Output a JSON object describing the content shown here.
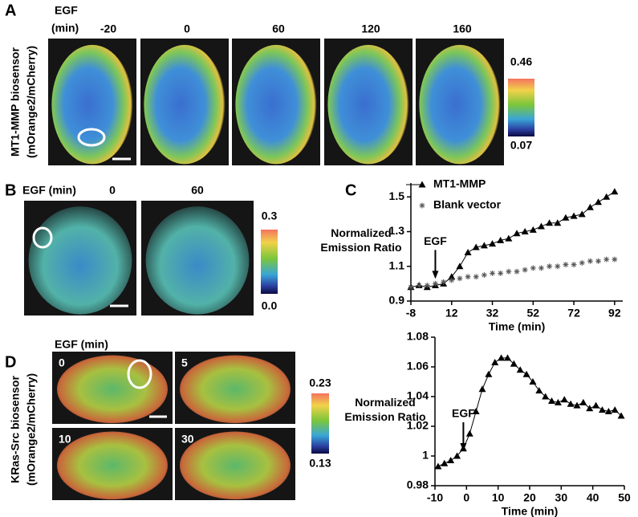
{
  "figure": {
    "panel_labels": [
      "A",
      "B",
      "C",
      "D"
    ],
    "a": {
      "egf_label": [
        "EGF",
        "(min)"
      ],
      "times": [
        "-20",
        "0",
        "60",
        "120",
        "160"
      ],
      "ylabel": [
        "MT1-MMP biosensor",
        "(mOrange2/mCherry)"
      ],
      "scale": [
        "0.46",
        "0.07"
      ]
    },
    "b": {
      "egf_label": "EGF (min)",
      "times": [
        "0",
        "60"
      ],
      "scale": [
        "0.3",
        "0.0"
      ]
    },
    "d": {
      "egf_label": "EGF (min)",
      "times": [
        "0",
        "5",
        "10",
        "30"
      ],
      "ylabel": [
        "KRas-Src biosensor",
        "(mOrange2/mCherry)"
      ],
      "scale": [
        "0.23",
        "0.13"
      ]
    }
  },
  "chart_data": [
    {
      "type": "line",
      "xlabel": "Time (min)",
      "ylabel": [
        "Normalized",
        "Emission Ratio"
      ],
      "xlim": [
        -8,
        96
      ],
      "xticks": [
        -8,
        12,
        32,
        52,
        72,
        92
      ],
      "ylim": [
        0.9,
        1.58
      ],
      "yticks": [
        0.9,
        1.1,
        1.3,
        1.5
      ],
      "annotation": {
        "text": "EGF",
        "x": 4,
        "y": 1.0
      },
      "x": [
        -8,
        -4,
        0,
        4,
        8,
        12,
        16,
        20,
        24,
        28,
        32,
        36,
        40,
        44,
        48,
        52,
        56,
        60,
        64,
        68,
        72,
        76,
        80,
        84,
        88,
        92
      ],
      "series": [
        {
          "name": "MT1-MMP",
          "color": "#000000",
          "marker": "triangle",
          "line": true,
          "values": [
            0.98,
            0.99,
            0.98,
            0.99,
            1.0,
            1.04,
            1.1,
            1.18,
            1.21,
            1.22,
            1.23,
            1.25,
            1.26,
            1.29,
            1.3,
            1.31,
            1.33,
            1.35,
            1.35,
            1.38,
            1.39,
            1.4,
            1.44,
            1.47,
            1.5,
            1.53
          ]
        },
        {
          "name": "Blank vector",
          "color": "#555555",
          "marker": "asterisk",
          "line": false,
          "values": [
            0.98,
            0.99,
            0.99,
            1.0,
            1.01,
            1.02,
            1.03,
            1.04,
            1.04,
            1.05,
            1.06,
            1.06,
            1.07,
            1.07,
            1.08,
            1.09,
            1.09,
            1.1,
            1.1,
            1.11,
            1.11,
            1.12,
            1.13,
            1.13,
            1.14,
            1.14
          ]
        }
      ]
    },
    {
      "type": "line",
      "xlabel": "Time (min)",
      "ylabel": [
        "Normalized",
        "Emission Ratio"
      ],
      "xlim": [
        -10,
        50
      ],
      "xticks": [
        -10,
        0,
        10,
        20,
        30,
        40,
        50
      ],
      "ylim": [
        0.98,
        1.08
      ],
      "yticks": [
        0.98,
        1,
        1.02,
        1.04,
        1.06,
        1.08
      ],
      "annotation": {
        "text": "EGF",
        "x": -1,
        "y": 1.0
      },
      "x": [
        -9,
        -7,
        -5,
        -3,
        -1,
        1,
        3,
        5,
        7,
        9,
        11,
        13,
        15,
        17,
        19,
        21,
        23,
        25,
        27,
        29,
        31,
        33,
        35,
        37,
        39,
        41,
        43,
        45,
        47,
        49
      ],
      "series": [
        {
          "color": "#000000",
          "marker": "triangle",
          "line": true,
          "values": [
            0.993,
            0.995,
            0.997,
            1.0,
            1.005,
            1.015,
            1.03,
            1.045,
            1.055,
            1.063,
            1.066,
            1.066,
            1.062,
            1.058,
            1.055,
            1.05,
            1.044,
            1.04,
            1.037,
            1.036,
            1.038,
            1.035,
            1.034,
            1.036,
            1.032,
            1.034,
            1.031,
            1.03,
            1.031,
            1.027
          ]
        }
      ]
    }
  ]
}
